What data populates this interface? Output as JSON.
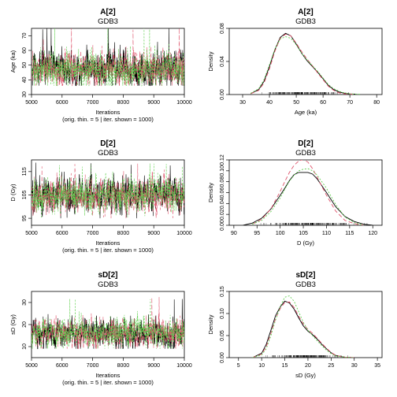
{
  "series_colors": [
    "#000000",
    "#df536b",
    "#61d04f"
  ],
  "chart_data": [
    {
      "type": "line",
      "title": "A[2]",
      "subtitle": "GDB3",
      "xlabel": "Iterations",
      "xlabel2": "(orig. thin. = 5 | iter. shown = 1000)",
      "ylabel": "Age (ka)",
      "xlim": [
        5000,
        10000
      ],
      "ylim": [
        30,
        75
      ],
      "xticks": [
        5000,
        6000,
        7000,
        8000,
        9000,
        10000
      ],
      "yticks": [
        30,
        40,
        50,
        60,
        70
      ],
      "grid": false,
      "trace": {
        "center": 47,
        "spread": 6,
        "min": 36,
        "max": 76,
        "seed": 11
      }
    },
    {
      "type": "line",
      "title": "A[2]",
      "subtitle": "GDB3",
      "xlabel": "Age (ka)",
      "ylabel": "Density",
      "xlim": [
        25,
        82
      ],
      "ylim": [
        0,
        0.08
      ],
      "xticks": [
        30,
        40,
        50,
        60,
        70,
        80
      ],
      "yticks": [
        0.0,
        0.04,
        0.08
      ],
      "ytick_labels": [
        "0.00",
        "0.04",
        "0.08"
      ],
      "grid": false,
      "rug": {
        "min": 33,
        "max": 73
      },
      "series": [
        {
          "x": [
            33,
            36,
            38,
            40,
            42,
            44,
            46,
            48,
            50,
            52,
            54,
            56,
            58,
            60,
            62,
            64,
            66,
            68,
            70,
            72
          ],
          "y": [
            0.001,
            0.006,
            0.016,
            0.034,
            0.054,
            0.069,
            0.074,
            0.071,
            0.061,
            0.05,
            0.041,
            0.034,
            0.027,
            0.019,
            0.011,
            0.006,
            0.003,
            0.0015,
            0.0008,
            0.0004
          ]
        },
        {
          "x": [
            33,
            36,
            38,
            40,
            42,
            44,
            46,
            48,
            50,
            52,
            54,
            56,
            58,
            60,
            62,
            64,
            66,
            68,
            70,
            72
          ],
          "y": [
            0.001,
            0.005,
            0.014,
            0.031,
            0.052,
            0.068,
            0.073,
            0.071,
            0.062,
            0.052,
            0.043,
            0.035,
            0.026,
            0.018,
            0.01,
            0.005,
            0.002,
            0.001,
            0.0006,
            0.0003
          ]
        },
        {
          "x": [
            33,
            36,
            38,
            40,
            42,
            44,
            46,
            48,
            50,
            52,
            54,
            56,
            58,
            60,
            62,
            64,
            66,
            68,
            70,
            72,
            74
          ],
          "y": [
            0.0015,
            0.007,
            0.018,
            0.036,
            0.055,
            0.067,
            0.07,
            0.068,
            0.06,
            0.05,
            0.042,
            0.035,
            0.028,
            0.02,
            0.012,
            0.007,
            0.004,
            0.002,
            0.001,
            0.0006,
            0.0003
          ]
        }
      ]
    },
    {
      "type": "line",
      "title": "D[2]",
      "subtitle": "GDB3",
      "xlabel": "Iterations",
      "xlabel2": "(orig. thin. = 5 | iter. shown = 1000)",
      "ylabel": "D (Gy)",
      "xlim": [
        5000,
        10000
      ],
      "ylim": [
        92,
        120
      ],
      "xticks": [
        5000,
        6000,
        7000,
        8000,
        9000,
        10000
      ],
      "yticks": [
        95,
        105,
        115
      ],
      "grid": false,
      "trace": {
        "center": 105,
        "spread": 3.8,
        "min": 95,
        "max": 119,
        "seed": 23
      }
    },
    {
      "type": "line",
      "title": "D[2]",
      "subtitle": "GDB3",
      "xlabel": "D (Gy)",
      "ylabel": "Density",
      "xlim": [
        89,
        122
      ],
      "ylim": [
        0,
        0.12
      ],
      "xticks": [
        90,
        95,
        100,
        105,
        110,
        115,
        120
      ],
      "yticks": [
        0.0,
        0.02,
        0.04,
        0.06,
        0.08,
        0.1,
        0.12
      ],
      "ytick_labels": [
        "0.00",
        "0.02",
        "0.04",
        "0.06",
        "0.08",
        "0.10",
        "0.12"
      ],
      "grid": false,
      "rug": {
        "min": 93,
        "max": 120
      },
      "series": [
        {
          "x": [
            92,
            94,
            96,
            98,
            100,
            101,
            102,
            103,
            104,
            105,
            106,
            107,
            108,
            110,
            112,
            114,
            116,
            118,
            120
          ],
          "y": [
            0.0,
            0.004,
            0.013,
            0.03,
            0.055,
            0.068,
            0.082,
            0.093,
            0.097,
            0.097,
            0.097,
            0.094,
            0.085,
            0.06,
            0.034,
            0.016,
            0.007,
            0.002,
            0.0
          ]
        },
        {
          "x": [
            94,
            96,
            98,
            100,
            101,
            102,
            103,
            104,
            105,
            106,
            107,
            108,
            110,
            112,
            114,
            116,
            118
          ],
          "y": [
            0.002,
            0.011,
            0.03,
            0.062,
            0.08,
            0.097,
            0.11,
            0.118,
            0.121,
            0.116,
            0.104,
            0.088,
            0.055,
            0.026,
            0.009,
            0.003,
            0.0
          ]
        },
        {
          "x": [
            94,
            96,
            98,
            100,
            101,
            102,
            103,
            104,
            105,
            106,
            107,
            108,
            110,
            112,
            114,
            116,
            118
          ],
          "y": [
            0.002,
            0.009,
            0.025,
            0.05,
            0.066,
            0.081,
            0.092,
            0.1,
            0.103,
            0.104,
            0.1,
            0.092,
            0.068,
            0.038,
            0.015,
            0.005,
            0.0
          ]
        }
      ]
    },
    {
      "type": "line",
      "title": "sD[2]",
      "subtitle": "GDB3",
      "xlabel": "Iterations",
      "xlabel2": "(orig. thin. = 5 | iter. shown = 1000)",
      "ylabel": "sD (Gy)",
      "xlim": [
        5000,
        10000
      ],
      "ylim": [
        5,
        35
      ],
      "xticks": [
        5000,
        6000,
        7000,
        8000,
        9000,
        10000
      ],
      "yticks": [
        10,
        20,
        30
      ],
      "grid": false,
      "trace": {
        "center": 16,
        "spread": 3.3,
        "min": 9,
        "max": 33,
        "seed": 37
      }
    },
    {
      "type": "line",
      "title": "sD[2]",
      "subtitle": "GDB3",
      "xlabel": "sD (Gy)",
      "ylabel": "Density",
      "xlim": [
        3,
        36
      ],
      "ylim": [
        0,
        0.15
      ],
      "xticks": [
        5,
        10,
        15,
        20,
        25,
        30,
        35
      ],
      "yticks": [
        0.0,
        0.05,
        0.1,
        0.15
      ],
      "ytick_labels": [
        "0.00",
        "0.05",
        "0.10",
        "0.15"
      ],
      "grid": false,
      "rug": {
        "min": 9,
        "max": 30
      },
      "series": [
        {
          "x": [
            8,
            10,
            11,
            12,
            13,
            14,
            15,
            16,
            17,
            18,
            19,
            20,
            21,
            22,
            23,
            24,
            25,
            26,
            28,
            30
          ],
          "y": [
            0.0,
            0.01,
            0.03,
            0.062,
            0.095,
            0.115,
            0.128,
            0.124,
            0.11,
            0.09,
            0.072,
            0.06,
            0.052,
            0.042,
            0.03,
            0.02,
            0.011,
            0.005,
            0.001,
            0.0
          ]
        },
        {
          "x": [
            8,
            10,
            11,
            12,
            13,
            14,
            15,
            16,
            17,
            18,
            19,
            20,
            21,
            22,
            23,
            24,
            25,
            26,
            28,
            30
          ],
          "y": [
            0.0,
            0.008,
            0.025,
            0.055,
            0.088,
            0.111,
            0.125,
            0.126,
            0.114,
            0.094,
            0.076,
            0.064,
            0.055,
            0.044,
            0.032,
            0.021,
            0.012,
            0.005,
            0.001,
            0.0
          ]
        },
        {
          "x": [
            8,
            10,
            11,
            12,
            13,
            14,
            15,
            16,
            17,
            18,
            19,
            20,
            21,
            22,
            23,
            24,
            25,
            26,
            28,
            30
          ],
          "y": [
            0.0,
            0.006,
            0.02,
            0.05,
            0.085,
            0.115,
            0.137,
            0.14,
            0.128,
            0.104,
            0.08,
            0.062,
            0.05,
            0.038,
            0.027,
            0.017,
            0.009,
            0.004,
            0.001,
            0.0
          ]
        }
      ]
    }
  ]
}
